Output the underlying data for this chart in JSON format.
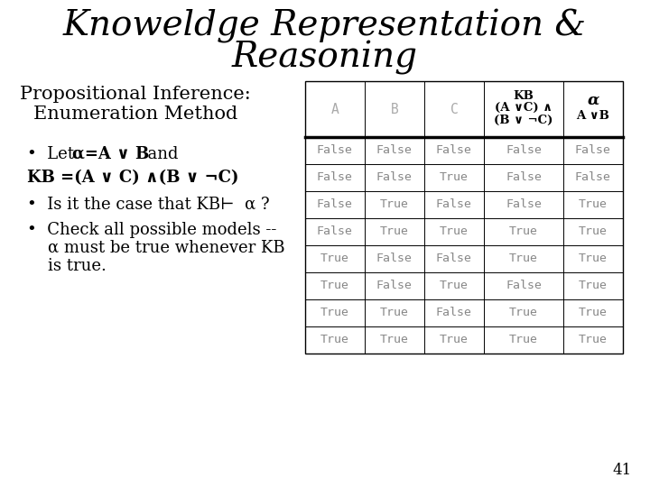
{
  "title_line1": "Knoweldge Representation &",
  "title_line2": "Reasoning",
  "subtitle_line1": "Propositional Inference:",
  "subtitle_line2": "Enumeration Method",
  "bullet1_pre": "•  Let ",
  "bullet1_bold": "α=A ∨ B",
  "bullet1_post": "  and",
  "bullet2": "KB =(A ∨ C) ∧(B ∨ ¬C)",
  "bullet3": "•  Is it the case that KB⊢  α ?",
  "bullet4_line1": "•  Check all possible models --",
  "bullet4_line2": "    α must be true whenever KB",
  "bullet4_line3": "    is true.",
  "col_headers_abc": [
    "A",
    "B",
    "C"
  ],
  "col_header_kb_line1": "KB",
  "col_header_kb_line2": "(A ∨C) ∧",
  "col_header_kb_line3": "(B ∨ ¬C)",
  "col_header_alpha": "α",
  "col_header_alpha2": "A ∨B",
  "table_data": [
    [
      "False",
      "False",
      "False",
      "False",
      "False"
    ],
    [
      "False",
      "False",
      "True",
      "False",
      "False"
    ],
    [
      "False",
      "True",
      "False",
      "False",
      "True"
    ],
    [
      "False",
      "True",
      "True",
      "True",
      "True"
    ],
    [
      "True",
      "False",
      "False",
      "True",
      "True"
    ],
    [
      "True",
      "False",
      "True",
      "False",
      "True"
    ],
    [
      "True",
      "True",
      "False",
      "True",
      "True"
    ],
    [
      "True",
      "True",
      "True",
      "True",
      "True"
    ]
  ],
  "bg_color": "#ffffff",
  "table_text_color": "#888888",
  "header_abc_color": "#aaaaaa",
  "header_kb_alpha_color": "#000000",
  "slide_number": "41",
  "title_fontsize": 28,
  "subtitle_fontsize": 15,
  "body_fontsize": 13,
  "table_fontsize": 9.5
}
